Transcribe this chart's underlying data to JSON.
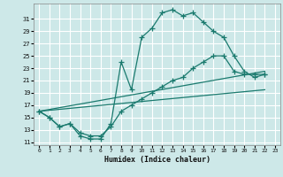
{
  "line1_x": [
    0,
    1,
    2,
    3,
    4,
    5,
    6,
    7,
    8,
    9,
    10,
    11,
    12,
    13,
    14,
    15,
    16,
    17,
    18,
    19,
    20,
    21,
    22
  ],
  "line1_y": [
    16,
    15,
    13.5,
    14,
    12,
    11.5,
    11.5,
    14,
    24,
    19.5,
    28,
    29.5,
    32,
    32.5,
    31.5,
    32,
    30.5,
    29,
    28,
    25,
    22.5,
    21.5,
    22
  ],
  "line2_x": [
    0,
    1,
    2,
    3,
    4,
    5,
    6,
    7,
    8,
    9,
    10,
    11,
    12,
    13,
    14,
    15,
    16,
    17,
    18,
    19,
    20,
    21,
    22
  ],
  "line2_y": [
    16,
    15,
    13.5,
    14,
    12.5,
    12,
    12,
    13.5,
    16.0,
    17,
    18,
    19,
    20,
    21,
    21.5,
    23,
    24,
    25,
    25,
    22.5,
    22,
    22,
    22
  ],
  "line3_x": [
    0,
    22
  ],
  "line3_y": [
    16,
    22.5
  ],
  "line4_x": [
    0,
    22
  ],
  "line4_y": [
    16,
    19.5
  ],
  "bg_color": "#cde8e8",
  "line_color": "#1a7a6e",
  "grid_color": "#ffffff",
  "xlabel": "Humidex (Indice chaleur)",
  "xlim": [
    -0.5,
    23.5
  ],
  "ylim": [
    10.5,
    33.5
  ],
  "yticks": [
    11,
    13,
    15,
    17,
    19,
    21,
    23,
    25,
    27,
    29,
    31
  ],
  "xticks": [
    0,
    1,
    2,
    3,
    4,
    5,
    6,
    7,
    8,
    9,
    10,
    11,
    12,
    13,
    14,
    15,
    16,
    17,
    18,
    19,
    20,
    21,
    22,
    23
  ]
}
